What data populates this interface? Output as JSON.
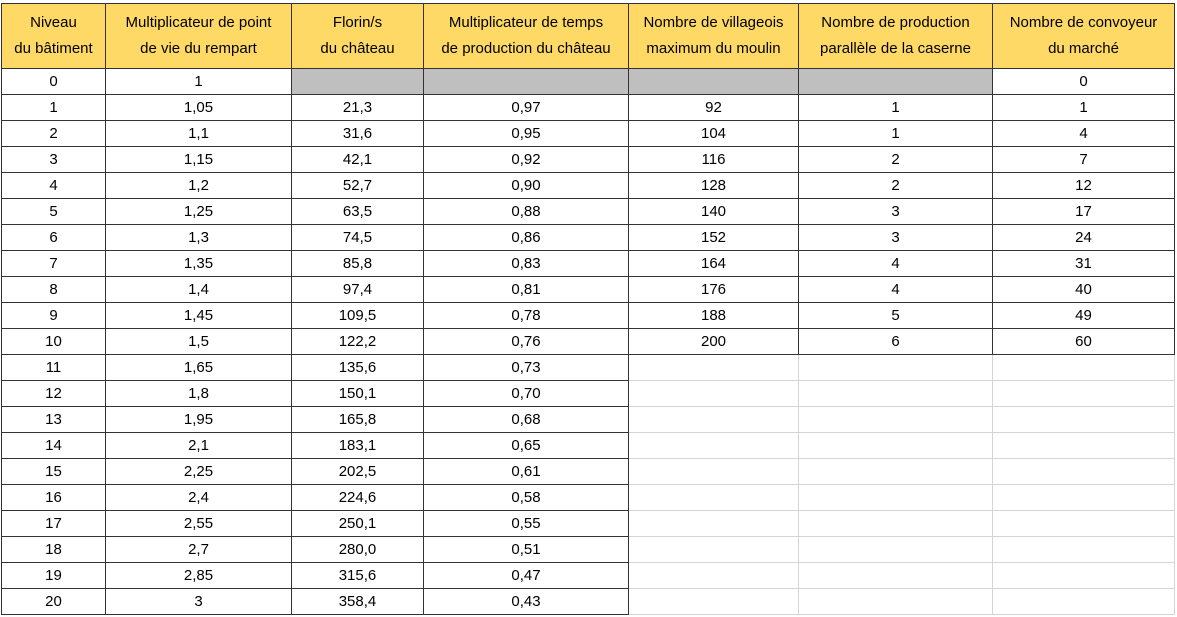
{
  "chart_data": {
    "type": "table",
    "columns": [
      "Niveau du bâtiment",
      "Multiplicateur de point de vie du rempart",
      "Florin/s du château",
      "Multiplicateur de temps de production du château",
      "Nombre de villageois maximum du moulin",
      "Nombre de production parallèle de la caserne",
      "Nombre de convoyeur du marché"
    ],
    "header_lines": [
      [
        "Niveau",
        "du bâtiment"
      ],
      [
        "Multiplicateur de point",
        "de vie du rempart"
      ],
      [
        "Florin/s",
        "du château"
      ],
      [
        "Multiplicateur de temps",
        "de production du château"
      ],
      [
        "Nombre de villageois",
        "maximum du moulin"
      ],
      [
        "Nombre de production",
        "parallèle de la caserne"
      ],
      [
        "Nombre de convoyeur",
        "du marché"
      ]
    ],
    "rows": [
      [
        "0",
        "1",
        null,
        null,
        null,
        null,
        "0"
      ],
      [
        "1",
        "1,05",
        "21,3",
        "0,97",
        "92",
        "1",
        "1"
      ],
      [
        "2",
        "1,1",
        "31,6",
        "0,95",
        "104",
        "1",
        "4"
      ],
      [
        "3",
        "1,15",
        "42,1",
        "0,92",
        "116",
        "2",
        "7"
      ],
      [
        "4",
        "1,2",
        "52,7",
        "0,90",
        "128",
        "2",
        "12"
      ],
      [
        "5",
        "1,25",
        "63,5",
        "0,88",
        "140",
        "3",
        "17"
      ],
      [
        "6",
        "1,3",
        "74,5",
        "0,86",
        "152",
        "3",
        "24"
      ],
      [
        "7",
        "1,35",
        "85,8",
        "0,83",
        "164",
        "4",
        "31"
      ],
      [
        "8",
        "1,4",
        "97,4",
        "0,81",
        "176",
        "4",
        "40"
      ],
      [
        "9",
        "1,45",
        "109,5",
        "0,78",
        "188",
        "5",
        "49"
      ],
      [
        "10",
        "1,5",
        "122,2",
        "0,76",
        "200",
        "6",
        "60"
      ],
      [
        "11",
        "1,65",
        "135,6",
        "0,73",
        "",
        "",
        ""
      ],
      [
        "12",
        "1,8",
        "150,1",
        "0,70",
        "",
        "",
        ""
      ],
      [
        "13",
        "1,95",
        "165,8",
        "0,68",
        "",
        "",
        ""
      ],
      [
        "14",
        "2,1",
        "183,1",
        "0,65",
        "",
        "",
        ""
      ],
      [
        "15",
        "2,25",
        "202,5",
        "0,61",
        "",
        "",
        ""
      ],
      [
        "16",
        "2,4",
        "224,6",
        "0,58",
        "",
        "",
        ""
      ],
      [
        "17",
        "2,55",
        "250,1",
        "0,55",
        "",
        "",
        ""
      ],
      [
        "18",
        "2,7",
        "280,0",
        "0,51",
        "",
        "",
        ""
      ],
      [
        "19",
        "2,85",
        "315,6",
        "0,47",
        "",
        "",
        ""
      ],
      [
        "20",
        "3",
        "358,4",
        "0,43",
        "",
        "",
        ""
      ]
    ]
  },
  "colors": {
    "header_fill": "#ffd966",
    "na_fill": "#bfbfbf",
    "border": "#333333",
    "grid": "#d4d4d4"
  }
}
